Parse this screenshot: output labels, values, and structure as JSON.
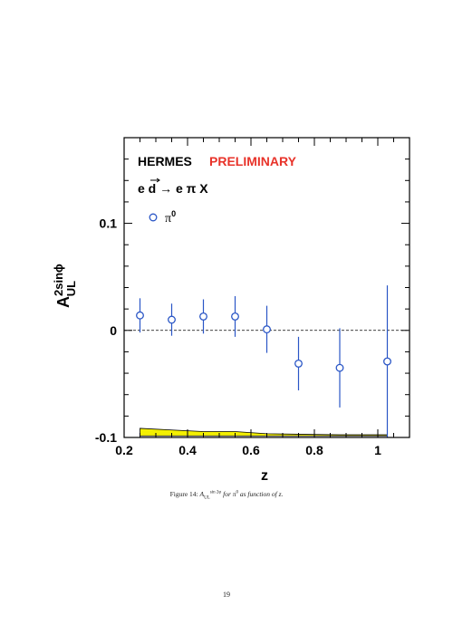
{
  "chart_data": {
    "type": "scatter",
    "title": "HERMES",
    "subtitle": "PRELIMINARY",
    "reaction": "e d → e π X",
    "legend": {
      "label": "π0",
      "position": "top-left"
    },
    "xlabel": "z",
    "ylabel": "A UL 2sinφ",
    "xlim": [
      0.2,
      1.1
    ],
    "ylim": [
      -0.1,
      0.18
    ],
    "x_ticks": [
      "0.2",
      "0.4",
      "0.6",
      "0.8",
      "1"
    ],
    "y_ticks": [
      "0.1",
      "0",
      "-0.1"
    ],
    "series": [
      {
        "name": "π0",
        "x": [
          0.25,
          0.35,
          0.45,
          0.55,
          0.65,
          0.75,
          0.88,
          1.03
        ],
        "y": [
          0.014,
          0.01,
          0.013,
          0.013,
          0.001,
          -0.031,
          -0.035,
          -0.029
        ],
        "err_up": [
          0.016,
          0.015,
          0.016,
          0.019,
          0.022,
          0.025,
          0.037,
          0.071
        ],
        "err_down": [
          0.016,
          0.015,
          0.016,
          0.019,
          0.022,
          0.025,
          0.037,
          0.071
        ],
        "marker_color": "#2a56c6"
      }
    ],
    "systematic_band": {
      "x": [
        0.25,
        0.35,
        0.45,
        0.55,
        0.65,
        0.75,
        0.88,
        1.03
      ],
      "upper": [
        -0.0915,
        -0.093,
        -0.0945,
        -0.0945,
        -0.0965,
        -0.097,
        -0.0975,
        -0.0975
      ],
      "lower": [
        -0.0985,
        -0.0985,
        -0.0985,
        -0.0985,
        -0.0985,
        -0.0985,
        -0.0985,
        -0.0985
      ],
      "color": "#f4f000"
    },
    "zero_line": {
      "y": 0,
      "style": "dashed"
    },
    "grid": false,
    "colors": {
      "title": "#000000",
      "preliminary": "#e8332a",
      "points": "#2a56c6"
    }
  },
  "caption": {
    "prefix": "Figure 14: ",
    "symbol": "A",
    "subscript": "UL",
    "superscript": "sin 2φ",
    "text_mid": " for π",
    "text_sup": "0",
    "text_end": " as function of z."
  },
  "page_number": "19"
}
